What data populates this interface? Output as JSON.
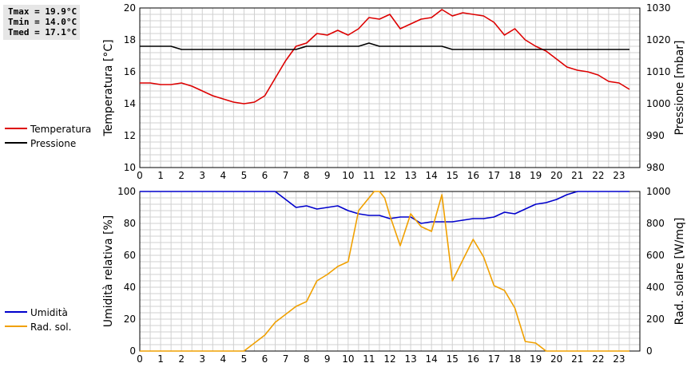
{
  "stats": {
    "tmax": "Tmax = 19.9°C",
    "tmin": "Tmin = 14.0°C",
    "tmed": "Tmed = 17.1°C"
  },
  "colors": {
    "temperature": "#dd0000",
    "pressure": "#000000",
    "humidity": "#0000cc",
    "radiation": "#f0a000",
    "grid": "#d0d0d0"
  },
  "chart_data": [
    {
      "type": "line",
      "x_ticks": [
        "0",
        "1",
        "2",
        "3",
        "4",
        "5",
        "6",
        "7",
        "8",
        "9",
        "10",
        "11",
        "12",
        "13",
        "14",
        "15",
        "16",
        "17",
        "18",
        "19",
        "20",
        "21",
        "22",
        "23"
      ],
      "xlim": [
        0,
        24
      ],
      "ylabel": "Temperatura [°C]",
      "ylim": [
        10,
        20
      ],
      "y_ticks": [
        "10",
        "12",
        "14",
        "16",
        "18",
        "20"
      ],
      "y2label": "Pressione [mbar]",
      "y2lim": [
        980,
        1030
      ],
      "y2_ticks": [
        "980",
        "990",
        "1000",
        "1010",
        "1020",
        "1030"
      ],
      "grid": true,
      "legend_position": "left",
      "series": [
        {
          "name": "Temperatura",
          "axis": "left",
          "x": [
            0,
            0.5,
            1,
            1.5,
            2,
            2.5,
            3,
            3.5,
            4,
            4.5,
            5,
            5.5,
            6,
            6.5,
            7,
            7.5,
            8,
            8.5,
            9,
            9.5,
            10,
            10.5,
            11,
            11.5,
            12,
            12.5,
            13,
            13.5,
            14,
            14.5,
            15,
            15.5,
            16,
            16.5,
            17,
            17.5,
            18,
            18.5,
            19,
            19.5,
            20,
            20.5,
            21,
            21.5,
            22,
            22.5,
            23,
            23.5
          ],
          "values": [
            15.3,
            15.3,
            15.2,
            15.2,
            15.3,
            15.1,
            14.8,
            14.5,
            14.3,
            14.1,
            14.0,
            14.1,
            14.5,
            15.6,
            16.7,
            17.6,
            17.8,
            18.4,
            18.3,
            18.6,
            18.3,
            18.7,
            19.4,
            19.3,
            19.6,
            18.7,
            19.0,
            19.3,
            19.4,
            19.9,
            19.5,
            19.7,
            19.6,
            19.5,
            19.1,
            18.3,
            18.7,
            18.0,
            17.6,
            17.3,
            16.8,
            16.3,
            16.1,
            16.0,
            15.8,
            15.4,
            15.3,
            14.9
          ]
        },
        {
          "name": "Pressione",
          "axis": "right",
          "x": [
            0,
            1.5,
            2,
            7.5,
            8,
            10.5,
            11,
            11.5,
            14.5,
            15,
            23.5
          ],
          "values": [
            1018,
            1018,
            1017,
            1017,
            1018,
            1018,
            1019,
            1018,
            1018,
            1017,
            1017
          ]
        }
      ]
    },
    {
      "type": "line",
      "x_ticks": [
        "0",
        "1",
        "2",
        "3",
        "4",
        "5",
        "6",
        "7",
        "8",
        "9",
        "10",
        "11",
        "12",
        "13",
        "14",
        "15",
        "16",
        "17",
        "18",
        "19",
        "20",
        "21",
        "22",
        "23"
      ],
      "xlim": [
        0,
        24
      ],
      "ylabel": "Umidità relativa [%]",
      "ylim": [
        0,
        100
      ],
      "y_ticks": [
        "0",
        "20",
        "40",
        "60",
        "80",
        "100"
      ],
      "y2label": "Rad. solare [W/mq]",
      "y2lim": [
        0,
        1000
      ],
      "y2_ticks": [
        "0",
        "200",
        "400",
        "600",
        "800",
        "1000"
      ],
      "grid": true,
      "legend_position": "left",
      "series": [
        {
          "name": "Umidità",
          "axis": "left",
          "x": [
            0,
            6.5,
            7,
            7.5,
            8,
            8.5,
            9,
            9.5,
            10,
            10.5,
            11,
            11.5,
            12,
            12.5,
            13,
            13.5,
            14,
            14.5,
            15,
            15.5,
            16,
            16.5,
            17,
            17.5,
            18,
            18.5,
            19,
            19.5,
            20,
            20.5,
            21,
            23.5
          ],
          "values": [
            100,
            100,
            95,
            90,
            91,
            89,
            90,
            91,
            88,
            86,
            85,
            85,
            83,
            84,
            84,
            80,
            81,
            81,
            81,
            82,
            83,
            83,
            84,
            87,
            86,
            89,
            92,
            93,
            95,
            98,
            100,
            100
          ]
        },
        {
          "name": "Rad. sol.",
          "axis": "right",
          "x": [
            0,
            5,
            5.5,
            6,
            6.5,
            7,
            7.5,
            8,
            8.5,
            9,
            9.5,
            10,
            10.5,
            11,
            11.25,
            11.5,
            11.75,
            12,
            12.5,
            13,
            13.5,
            14,
            14.5,
            15,
            15.5,
            16,
            16.5,
            17,
            17.5,
            18,
            18.5,
            19,
            19.5,
            20,
            23.5
          ],
          "values": [
            0,
            0,
            50,
            100,
            180,
            230,
            280,
            310,
            440,
            480,
            530,
            560,
            880,
            960,
            1040,
            1020,
            960,
            850,
            660,
            860,
            780,
            750,
            980,
            440,
            570,
            700,
            590,
            410,
            380,
            270,
            60,
            50,
            0,
            0,
            0
          ]
        }
      ]
    }
  ]
}
